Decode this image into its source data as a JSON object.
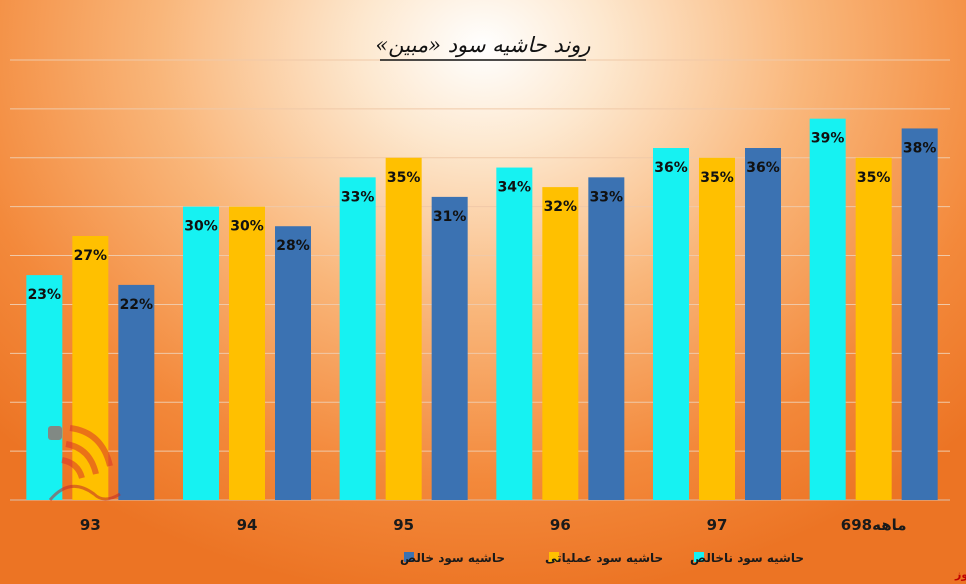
{
  "chart_data": {
    "type": "bar",
    "title": "روند حاشیه سود «مبین»",
    "xlabel": "",
    "ylabel": "",
    "ylim": [
      0,
      45
    ],
    "grid": true,
    "legend_position": "bottom",
    "categories": [
      "93",
      "94",
      "95",
      "96",
      "97",
      "6ماهه98"
    ],
    "series": [
      {
        "name": "حاشیه سود ناخالص",
        "color": "#16f2f2",
        "values": [
          23,
          30,
          33,
          34,
          36,
          39
        ],
        "labels": [
          "23%",
          "30%",
          "33%",
          "34%",
          "36%",
          "39%"
        ]
      },
      {
        "name": "حاشیه سود عملیاتی",
        "color": "#ffc000",
        "values": [
          27,
          30,
          35,
          32,
          35,
          35
        ],
        "labels": [
          "27%",
          "30%",
          "35%",
          "32%",
          "35%",
          "35%"
        ]
      },
      {
        "name": "حاشیه سود خالص",
        "color": "#3b72b2",
        "values": [
          22,
          28,
          31,
          33,
          36,
          38
        ],
        "labels": [
          "22%",
          "28%",
          "31%",
          "33%",
          "36%",
          "38%"
        ]
      }
    ]
  },
  "source": "بورس نیوز",
  "colors": {
    "grid": "#f0c9a8",
    "axis": "#e0b090",
    "title_underline": "#111111"
  }
}
